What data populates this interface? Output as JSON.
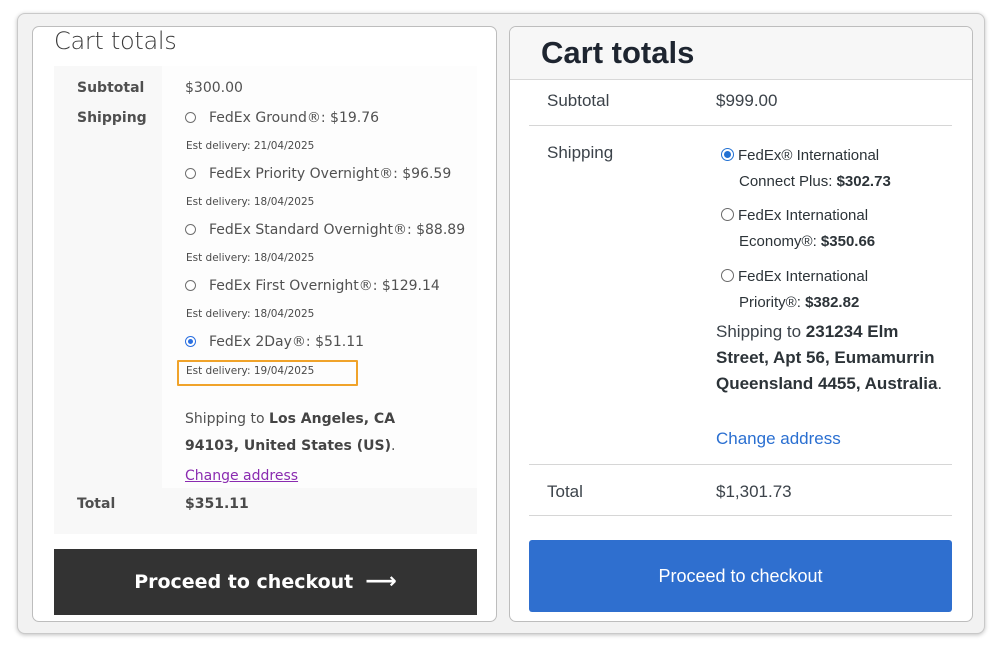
{
  "left": {
    "title": "Cart totals",
    "subtotal_label": "Subtotal",
    "subtotal_value": "$300.00",
    "shipping_label": "Shipping",
    "options": [
      {
        "label": "FedEx Ground®: $19.76",
        "est": "Est delivery: 21/04/2025",
        "selected": false
      },
      {
        "label": "FedEx Priority Overnight®: $96.59",
        "est": "Est delivery: 18/04/2025",
        "selected": false
      },
      {
        "label": "FedEx Standard Overnight®: $88.89",
        "est": "Est delivery: 18/04/2025",
        "selected": false
      },
      {
        "label": "FedEx First Overnight®: $129.14",
        "est": "Est delivery: 18/04/2025",
        "selected": false
      },
      {
        "label": "FedEx 2Day®: $51.11",
        "est": "Est delivery: 19/04/2025",
        "selected": true
      }
    ],
    "shipping_to_prefix": "Shipping to ",
    "shipping_to_address": "Los Angeles, CA 94103, United States (US)",
    "shipping_to_suffix": ".",
    "change_address": "Change address",
    "total_label": "Total",
    "total_value": "$351.11",
    "checkout_label": "Proceed to checkout",
    "checkout_icon": "arrow-right-icon",
    "highlight_color": "#f0a32a"
  },
  "right": {
    "title": "Cart totals",
    "subtotal_label": "Subtotal",
    "subtotal_value": "$999.00",
    "shipping_label": "Shipping",
    "options": [
      {
        "line1": "FedEx® International",
        "line2_text": "Connect Plus: ",
        "price": "$302.73",
        "selected": true
      },
      {
        "line1": "FedEx International",
        "line2_text": "Economy®: ",
        "price": "$350.66",
        "selected": false
      },
      {
        "line1": "FedEx International",
        "line2_text": "Priority®: ",
        "price": "$382.82",
        "selected": false
      }
    ],
    "shipping_to_prefix": "Shipping to ",
    "shipping_to_address": "231234 Elm Street, Apt 56, Eumamurrin Queensland 4455, Australia",
    "shipping_to_suffix": ".",
    "change_address": "Change address",
    "total_label": "Total",
    "total_value": "$1,301.73",
    "checkout_label": "Proceed to checkout",
    "accent_color": "#2f6fcf"
  }
}
